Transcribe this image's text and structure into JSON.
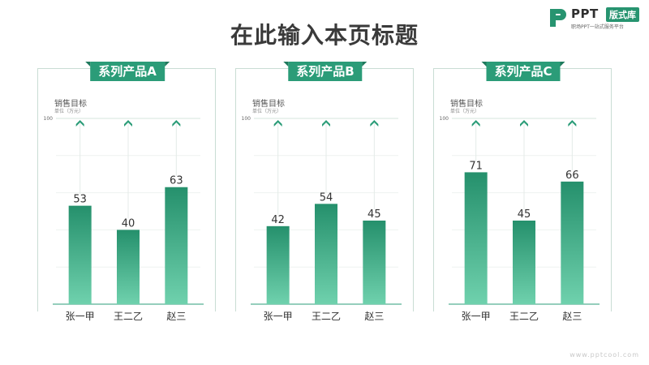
{
  "title": "在此输入本页标题",
  "logo": {
    "brand": "PPT",
    "tag": "版式库",
    "sub": "职场PPT一站式服务平台"
  },
  "colors": {
    "accent": "#2b9c78",
    "bar_top": "#25906c",
    "bar_bottom": "#6fd1ad"
  },
  "chart_data": [
    {
      "type": "bar",
      "title": "系列产品A",
      "ylabel": "销售目标",
      "unit": "单位（万元）",
      "categories": [
        "张一甲",
        "王二乙",
        "赵三"
      ],
      "values": [
        53,
        40,
        63
      ],
      "ylim": [
        0,
        100
      ],
      "yticks": [
        100
      ],
      "grid": true
    },
    {
      "type": "bar",
      "title": "系列产品B",
      "ylabel": "销售目标",
      "unit": "单位（万元）",
      "categories": [
        "张一甲",
        "王二乙",
        "赵三"
      ],
      "values": [
        42,
        54,
        45
      ],
      "ylim": [
        0,
        100
      ],
      "yticks": [
        100
      ],
      "grid": true
    },
    {
      "type": "bar",
      "title": "系列产品C",
      "ylabel": "销售目标",
      "unit": "单位（万元）",
      "categories": [
        "张一甲",
        "王二乙",
        "赵三"
      ],
      "values": [
        71,
        45,
        66
      ],
      "ylim": [
        0,
        100
      ],
      "yticks": [
        100
      ],
      "grid": true
    }
  ],
  "watermark": "www.pptcool.com"
}
